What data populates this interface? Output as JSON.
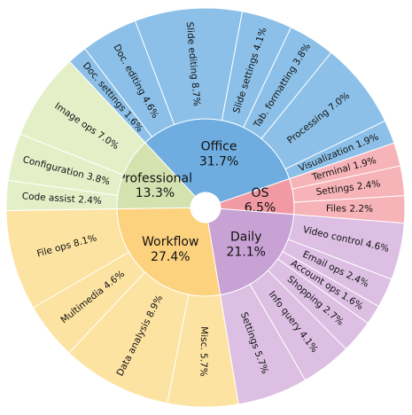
{
  "chart_data": {
    "type": "sunburst",
    "groups": [
      {
        "name": "Office",
        "value": 31.7,
        "value_label": "31.7%",
        "color": "#6fade0",
        "child_color": "#8cc0e8",
        "children": [
          {
            "name": "Doc. settings",
            "value": 1.6,
            "value_label": "1.6%"
          },
          {
            "name": "Doc. editing",
            "value": 4.6,
            "value_label": "4.6%"
          },
          {
            "name": "Slide editing",
            "value": 8.7,
            "value_label": "8.7%"
          },
          {
            "name": "Slide settings",
            "value": 4.1,
            "value_label": "4.1%"
          },
          {
            "name": "Tab. formatting",
            "value": 3.8,
            "value_label": "3.8%"
          },
          {
            "name": "Processing",
            "value": 7.0,
            "value_label": "7.0%"
          },
          {
            "name": "Visualization",
            "value": 1.9,
            "value_label": "1.9%"
          }
        ]
      },
      {
        "name": "OS",
        "value": 6.5,
        "value_label": "6.5%",
        "color": "#f29aa3",
        "child_color": "#f6b3b8",
        "children": [
          {
            "name": "Terminal",
            "value": 1.9,
            "value_label": "1.9%"
          },
          {
            "name": "Settings",
            "value": 2.4,
            "value_label": "2.4%"
          },
          {
            "name": "Files",
            "value": 2.2,
            "value_label": "2.2%"
          }
        ]
      },
      {
        "name": "Daily",
        "value": 21.1,
        "value_label": "21.1%",
        "color": "#c8a2d4",
        "child_color": "#dcbfe3",
        "children": [
          {
            "name": "Video control",
            "value": 4.6,
            "value_label": "4.6%"
          },
          {
            "name": "Email ops",
            "value": 2.4,
            "value_label": "2.4%"
          },
          {
            "name": "Account ops",
            "value": 1.6,
            "value_label": "1.6%"
          },
          {
            "name": "Shopping",
            "value": 2.7,
            "value_label": "2.7%"
          },
          {
            "name": "Info query",
            "value": 4.1,
            "value_label": "4.1%"
          },
          {
            "name": "Settings",
            "value": 5.7,
            "value_label": "5.7%"
          }
        ]
      },
      {
        "name": "Workflow",
        "value": 27.4,
        "value_label": "27.4%",
        "color": "#fdd27f",
        "child_color": "#fde3a1",
        "children": [
          {
            "name": "Misc.",
            "value": 5.7,
            "value_label": "5.7%"
          },
          {
            "name": "Data analysis",
            "value": 8.9,
            "value_label": "8.9%"
          },
          {
            "name": "Multimedia",
            "value": 4.6,
            "value_label": "4.6%"
          },
          {
            "name": "File ops",
            "value": 8.1,
            "value_label": "8.1%"
          }
        ]
      },
      {
        "name": "Professional",
        "value": 13.3,
        "value_label": "13.3%",
        "color": "#d3e2ae",
        "child_color": "#e4efc8",
        "children": [
          {
            "name": "Code assist",
            "value": 2.4,
            "value_label": "2.4%"
          },
          {
            "name": "Configuration",
            "value": 3.8,
            "value_label": "3.8%"
          },
          {
            "name": "Image ops",
            "value": 7.0,
            "value_label": "7.0%"
          }
        ]
      }
    ]
  }
}
